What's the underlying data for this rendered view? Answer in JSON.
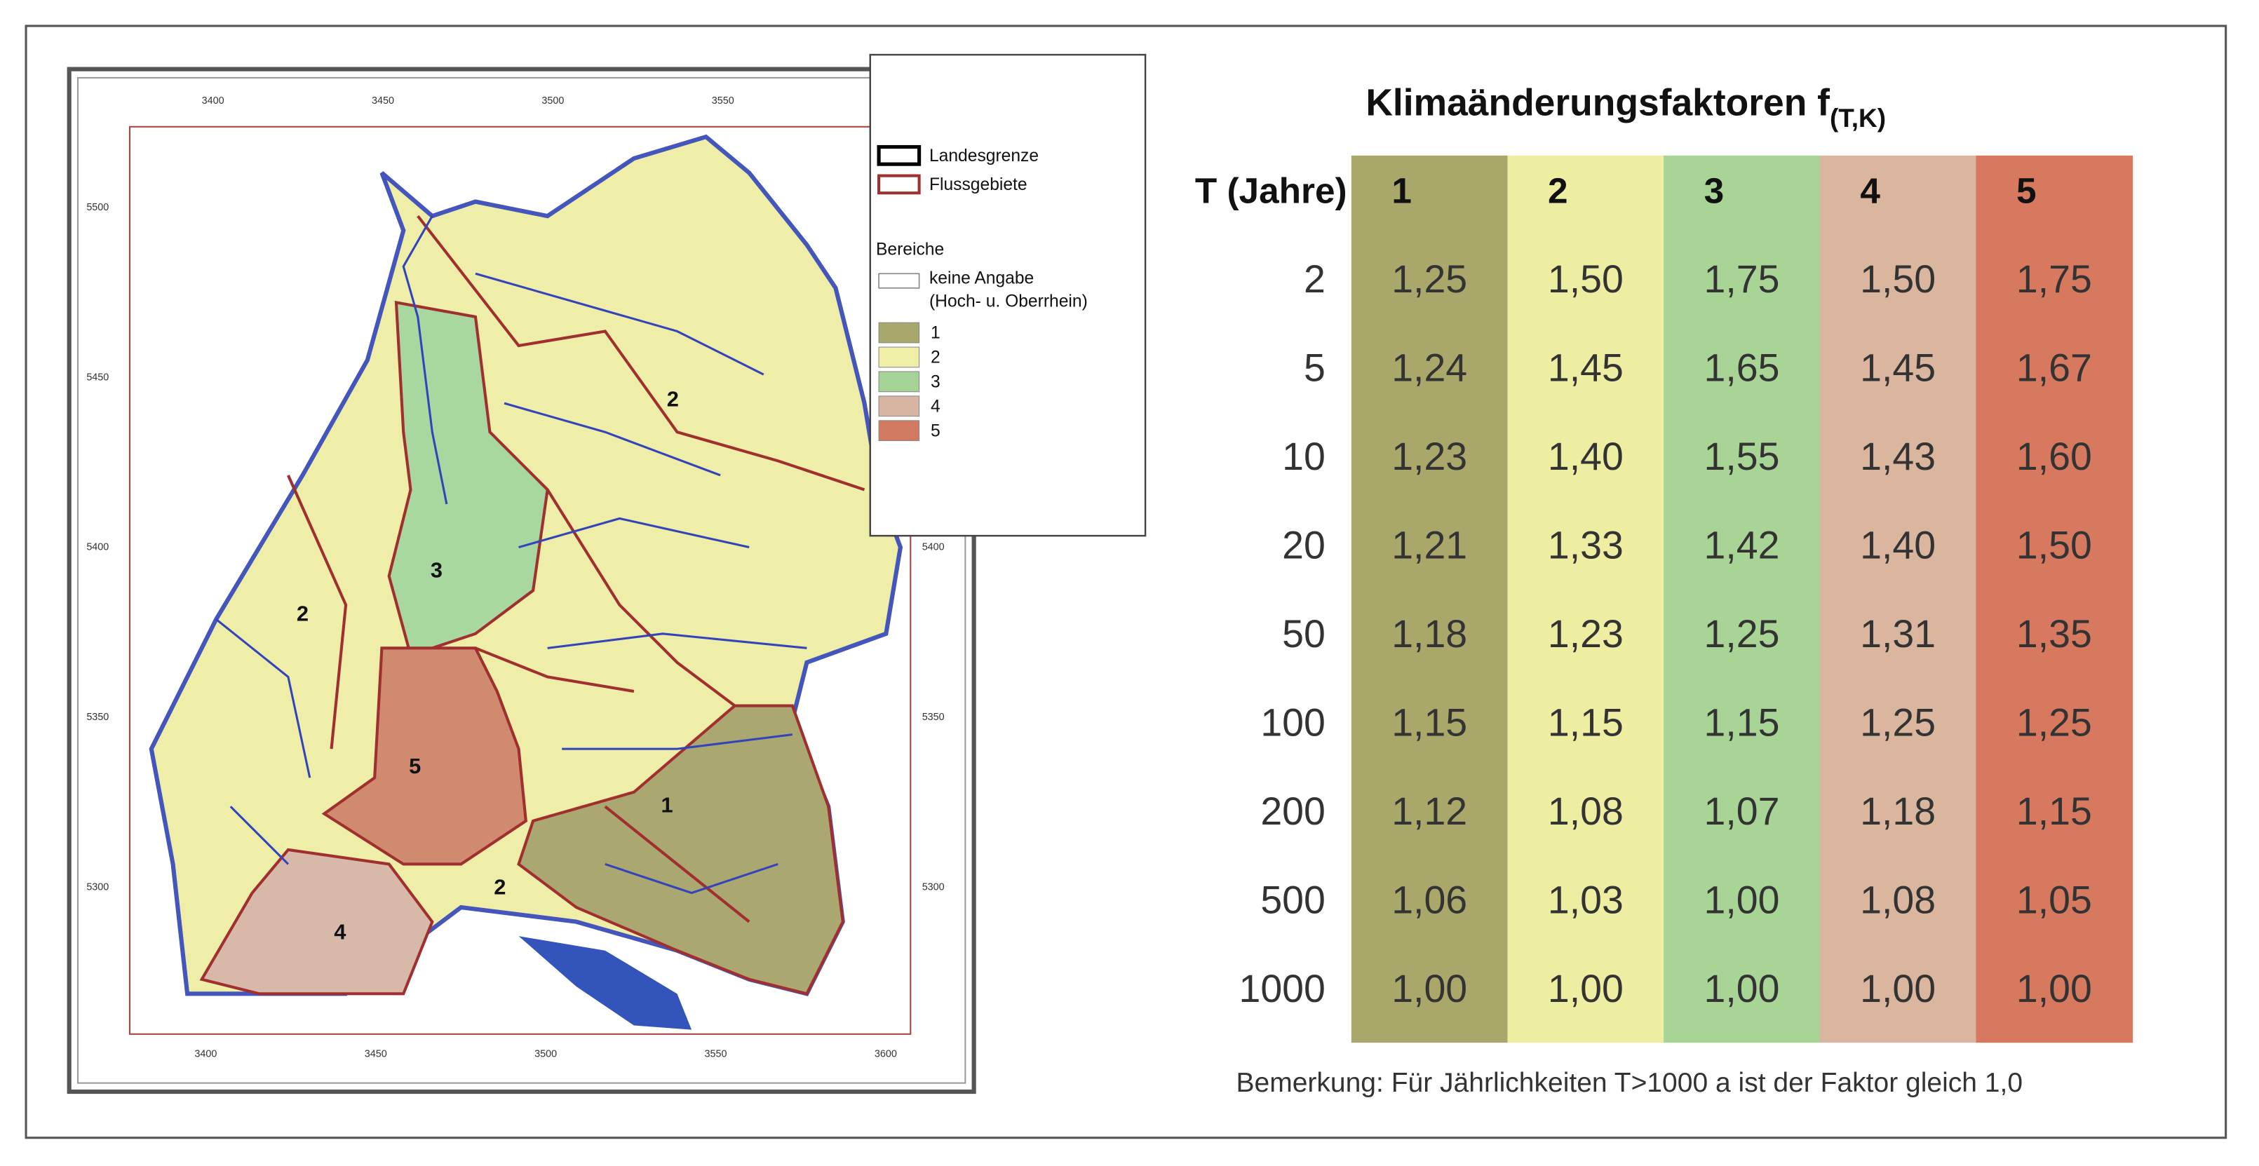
{
  "map": {
    "ticks_top": [
      "3400",
      "3450",
      "3500",
      "3550"
    ],
    "ticks_bottom": [
      "3400",
      "3450",
      "3500",
      "3550",
      "3600"
    ],
    "ticks_left": [
      "5500",
      "5450",
      "5400",
      "5350",
      "5300"
    ],
    "ticks_right": [
      "5400",
      "5350",
      "5300"
    ],
    "region_labels": [
      "2",
      "3",
      "2",
      "5",
      "1",
      "2",
      "4"
    ],
    "legend": {
      "lines": [
        "Landesgrenze",
        "Flussgebiete"
      ],
      "heading": "Bereiche",
      "none": [
        "keine Angabe",
        "(Hoch- u. Oberrhein)"
      ],
      "classes": [
        "1",
        "2",
        "3",
        "4",
        "5"
      ]
    }
  },
  "table": {
    "title": "Klimaänderungsfaktoren f",
    "title_sub": "(T,K)",
    "corner": "T (Jahre)",
    "columns": [
      "1",
      "2",
      "3",
      "4",
      "5"
    ],
    "rows": [
      [
        "2",
        "1,25",
        "1,50",
        "1,75",
        "1,50",
        "1,75"
      ],
      [
        "5",
        "1,24",
        "1,45",
        "1,65",
        "1,45",
        "1,67"
      ],
      [
        "10",
        "1,23",
        "1,40",
        "1,55",
        "1,43",
        "1,60"
      ],
      [
        "20",
        "1,21",
        "1,33",
        "1,42",
        "1,40",
        "1,50"
      ],
      [
        "50",
        "1,18",
        "1,23",
        "1,25",
        "1,31",
        "1,35"
      ],
      [
        "100",
        "1,15",
        "1,15",
        "1,15",
        "1,25",
        "1,25"
      ],
      [
        "200",
        "1,12",
        "1,08",
        "1,07",
        "1,18",
        "1,15"
      ],
      [
        "500",
        "1,06",
        "1,03",
        "1,00",
        "1,08",
        "1,05"
      ],
      [
        "1000",
        "1,00",
        "1,00",
        "1,00",
        "1,00",
        "1,00"
      ]
    ],
    "note": "Bemerkung: Für Jährlichkeiten T>1000 a ist der Faktor gleich 1,0"
  }
}
